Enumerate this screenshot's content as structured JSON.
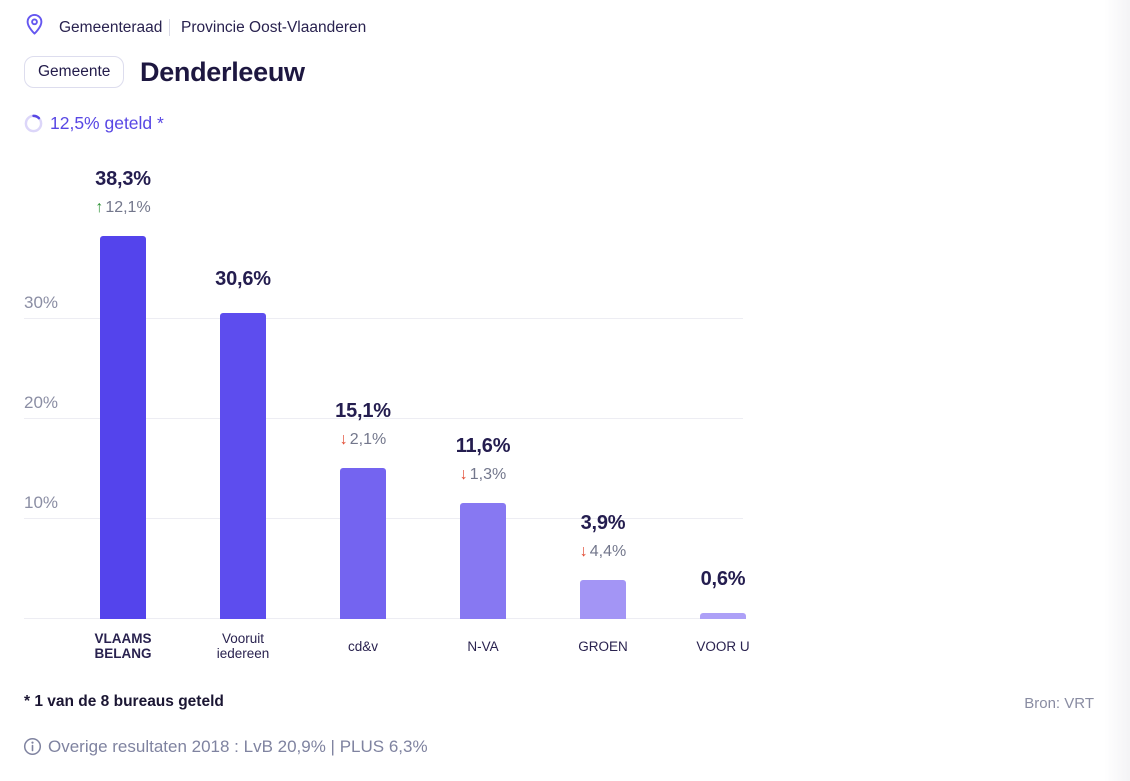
{
  "header": {
    "breadcrumb": {
      "election": "Gemeenteraad",
      "region": "Provincie Oost-Vlaanderen"
    },
    "level_badge": "Gemeente",
    "title": "Denderleeuw",
    "counted_text": "12,5% geteld *",
    "counted_percent": 12.5
  },
  "chart_data": {
    "type": "bar",
    "categories": [
      "VLAAMS BELANG",
      "Vooruit iedereen",
      "cd&v",
      "N-VA",
      "GROEN",
      "VOOR U"
    ],
    "values": [
      38.3,
      30.6,
      15.1,
      11.6,
      3.9,
      0.6
    ],
    "value_labels": [
      "38,3%",
      "30,6%",
      "15,1%",
      "11,6%",
      "3,9%",
      "0,6%"
    ],
    "changes": [
      {
        "direction": "up",
        "label": "12,1%"
      },
      null,
      {
        "direction": "down",
        "label": "2,1%"
      },
      {
        "direction": "down",
        "label": "1,3%"
      },
      {
        "direction": "down",
        "label": "4,4%"
      },
      null
    ],
    "bar_colors": [
      "#5444ec",
      "#5d4dee",
      "#7464f0",
      "#8778f2",
      "#a395f5",
      "#ada0f7"
    ],
    "bold_categories": [
      "VLAAMS BELANG"
    ],
    "yticks": [
      {
        "value": 10,
        "label": "10%"
      },
      {
        "value": 20,
        "label": "20%"
      },
      {
        "value": 30,
        "label": "30%"
      }
    ],
    "ylim": [
      0,
      47
    ],
    "grid": true,
    "legend": false,
    "title": "",
    "xlabel": "",
    "ylabel": ""
  },
  "footer": {
    "footnote": "* 1 van de 8 bureaus geteld",
    "source": "Bron: VRT",
    "info": "Overige resultaten 2018 : LvB 20,9% | PLUS 6,3%"
  },
  "icons": {
    "location_pin": "location-pin",
    "progress_ring": "progress-ring",
    "info_circle": "info-circle",
    "up_arrow": "↑",
    "down_arrow": "↓"
  },
  "colors": {
    "accent_purple": "#5847e4",
    "dark_navy": "#1d1740",
    "gray_text": "#73778c",
    "up_green": "#2f9337",
    "down_red": "#e24a31",
    "gridline": "#ededf3"
  }
}
